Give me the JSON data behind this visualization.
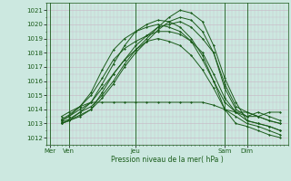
{
  "xlabel": "Pression niveau de la mer( hPa )",
  "ylim": [
    1011.5,
    1021.5
  ],
  "yticks": [
    1012,
    1013,
    1014,
    1015,
    1016,
    1017,
    1018,
    1019,
    1020,
    1021
  ],
  "xlim": [
    0,
    130
  ],
  "xtick_positions": [
    2,
    12,
    48,
    96,
    108
  ],
  "xtick_labels": [
    "Mer",
    "Ven",
    "Jeu",
    "Sam",
    "Dim"
  ],
  "day_vlines": [
    2,
    12,
    48,
    96,
    108
  ],
  "bg_color": "#cce8e0",
  "line_color": "#1a5c1a",
  "series": [
    {
      "x": [
        8,
        12,
        18,
        24,
        30,
        36,
        42,
        48,
        54,
        60,
        66,
        72,
        78,
        84,
        90,
        96,
        102,
        108,
        114,
        120,
        126
      ],
      "y": [
        1013.1,
        1013.3,
        1013.8,
        1014.2,
        1015.0,
        1016.0,
        1017.2,
        1018.2,
        1019.0,
        1019.8,
        1020.5,
        1021.0,
        1020.8,
        1020.2,
        1018.5,
        1016.2,
        1014.5,
        1013.2,
        1013.0,
        1012.8,
        1012.5
      ]
    },
    {
      "x": [
        8,
        12,
        18,
        24,
        30,
        36,
        42,
        48,
        54,
        60,
        66,
        72,
        78,
        84,
        90,
        96,
        102,
        108,
        114,
        120,
        126
      ],
      "y": [
        1013.0,
        1013.2,
        1013.6,
        1014.0,
        1014.8,
        1015.8,
        1017.0,
        1018.0,
        1018.8,
        1019.6,
        1020.2,
        1020.5,
        1020.3,
        1019.5,
        1018.0,
        1015.5,
        1014.0,
        1013.5,
        1013.8,
        1013.5,
        1013.2
      ]
    },
    {
      "x": [
        8,
        12,
        18,
        24,
        30,
        36,
        42,
        48,
        54,
        60,
        66,
        72,
        78,
        84,
        90,
        96,
        102,
        108,
        114,
        120,
        126
      ],
      "y": [
        1013.2,
        1013.5,
        1014.0,
        1014.5,
        1015.5,
        1016.5,
        1017.5,
        1018.5,
        1019.2,
        1019.8,
        1020.0,
        1020.2,
        1019.8,
        1019.0,
        1018.0,
        1015.8,
        1014.2,
        1013.8,
        1013.5,
        1013.2,
        1013.0
      ]
    },
    {
      "x": [
        8,
        12,
        18,
        24,
        30,
        36,
        42,
        48,
        54,
        60,
        66,
        72,
        78,
        84,
        90,
        96,
        102,
        108,
        114,
        120,
        126
      ],
      "y": [
        1013.3,
        1013.6,
        1014.2,
        1015.0,
        1016.2,
        1017.5,
        1018.3,
        1018.8,
        1019.2,
        1019.5,
        1019.5,
        1019.3,
        1018.8,
        1018.0,
        1016.5,
        1014.8,
        1013.8,
        1013.2,
        1013.0,
        1012.8,
        1012.5
      ]
    },
    {
      "x": [
        8,
        12,
        18,
        24,
        30,
        36,
        42,
        48,
        54,
        60,
        66,
        72,
        78,
        84,
        90,
        96,
        102,
        108,
        114,
        120,
        126
      ],
      "y": [
        1013.5,
        1013.8,
        1014.2,
        1014.5,
        1014.5,
        1014.5,
        1014.5,
        1014.5,
        1014.5,
        1014.5,
        1014.5,
        1014.5,
        1014.5,
        1014.5,
        1014.3,
        1014.0,
        1013.8,
        1013.5,
        1013.5,
        1013.8,
        1013.8
      ]
    },
    {
      "x": [
        8,
        12,
        18,
        24,
        30,
        36,
        42,
        48,
        54,
        60,
        66,
        72,
        78,
        84,
        90,
        96,
        102,
        108,
        114,
        120,
        126
      ],
      "y": [
        1013.0,
        1013.2,
        1013.5,
        1014.0,
        1015.2,
        1016.5,
        1017.5,
        1018.2,
        1018.8,
        1019.0,
        1018.8,
        1018.5,
        1017.8,
        1016.8,
        1015.5,
        1014.0,
        1013.5,
        1013.0,
        1012.8,
        1012.5,
        1012.2
      ]
    },
    {
      "x": [
        8,
        12,
        18,
        24,
        30,
        36,
        42,
        48,
        54,
        60,
        66,
        72,
        78,
        84,
        90,
        96,
        102,
        108,
        114,
        120,
        126
      ],
      "y": [
        1013.0,
        1013.2,
        1013.8,
        1014.5,
        1015.8,
        1017.2,
        1018.5,
        1019.5,
        1020.0,
        1020.3,
        1020.2,
        1019.8,
        1019.0,
        1017.8,
        1016.0,
        1014.0,
        1013.0,
        1012.8,
        1012.5,
        1012.2,
        1012.0
      ]
    },
    {
      "x": [
        8,
        12,
        18,
        24,
        30,
        36,
        42,
        48,
        54,
        60,
        66,
        72,
        78,
        84,
        90,
        96,
        102,
        108,
        114,
        120,
        126
      ],
      "y": [
        1013.2,
        1013.5,
        1014.2,
        1015.2,
        1016.8,
        1018.2,
        1019.0,
        1019.5,
        1019.8,
        1020.0,
        1019.8,
        1019.5,
        1018.8,
        1017.5,
        1016.0,
        1014.5,
        1013.8,
        1013.8,
        1013.5,
        1013.2,
        1013.0
      ]
    }
  ],
  "marker": "D",
  "markersize": 1.2,
  "linewidth": 0.7
}
